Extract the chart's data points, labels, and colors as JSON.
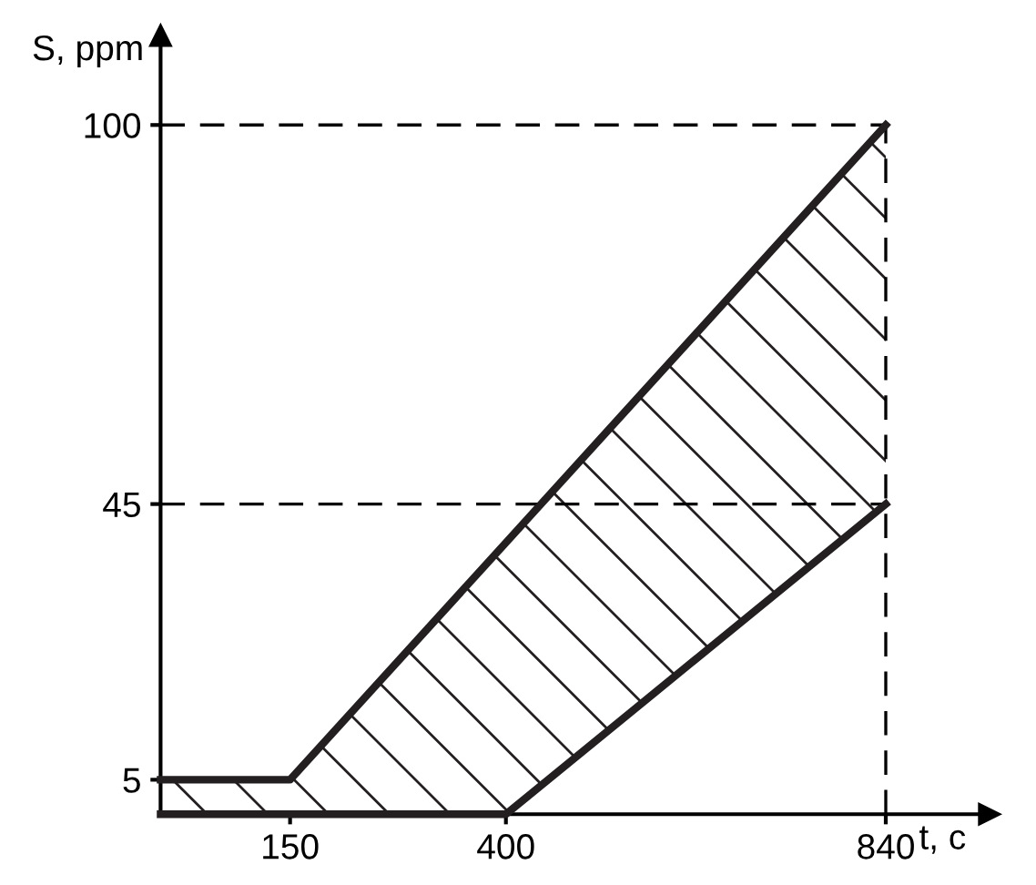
{
  "chart_data": {
    "type": "line",
    "xlabel": "t, c",
    "ylabel": "S, ppm",
    "series": [
      {
        "x": [
          0,
          150,
          400,
          840
        ],
        "values": [
          5,
          5,
          39.4,
          100
        ],
        "lower": [
          0,
          0,
          0,
          45
        ],
        "upper": [
          5,
          5,
          39.4,
          100
        ],
        "color": "#231f20"
      },
      {
        "x": [
          0,
          400,
          840
        ],
        "values": [
          0,
          0,
          45
        ],
        "color": "#231f20"
      }
    ],
    "ref_lines": [
      {
        "axis": "y",
        "value": 100,
        "label": null,
        "line_style": "dashed"
      },
      {
        "axis": "y",
        "value": 45,
        "label": null,
        "line_style": "dashed"
      },
      {
        "axis": "x",
        "value": 840,
        "label": null,
        "line_style": "dashed"
      }
    ],
    "xlim": [
      0,
      960
    ],
    "ylim": [
      0,
      113
    ],
    "xticks": [
      150,
      400,
      840
    ],
    "yticks": [
      5,
      45,
      100
    ],
    "grid": false,
    "legend": false,
    "marker": "none",
    "line_style": "solid"
  }
}
